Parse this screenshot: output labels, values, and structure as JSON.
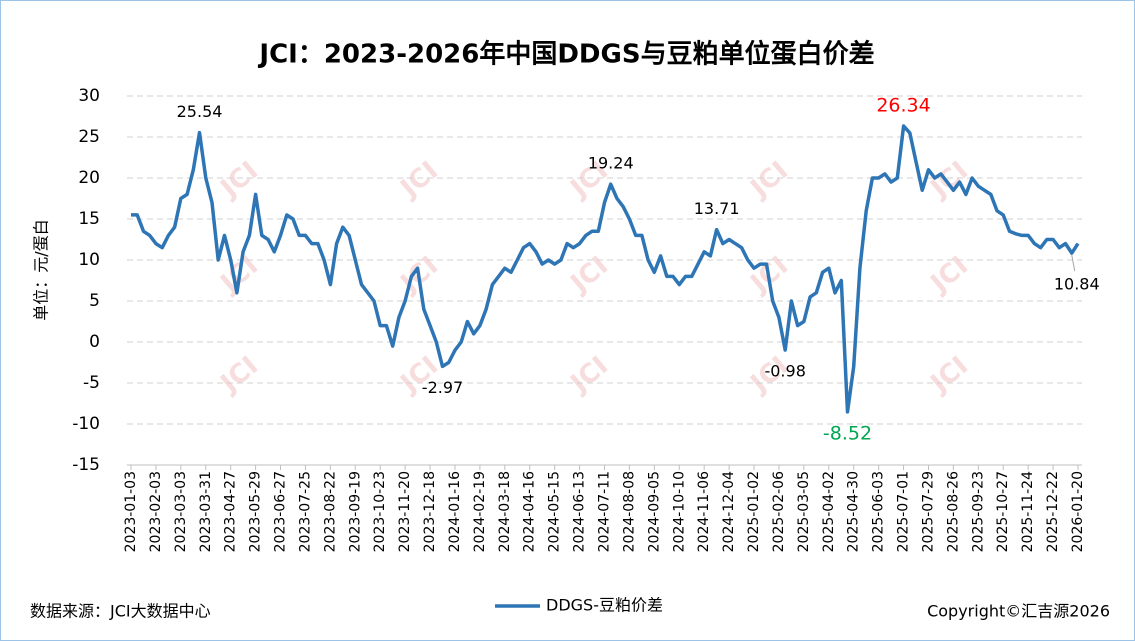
{
  "chart_data": {
    "type": "line",
    "title": "JCI：2023-2026年中国DDGS与豆粕单位蛋白价差",
    "y_label": "单位：元/蛋白",
    "source": "数据来源：JCI大数据中心",
    "copyright": "Copyright©汇吉源2026",
    "watermark": "JCI",
    "ylim": [
      -15,
      30
    ],
    "yticks": [
      -15,
      -10,
      -5,
      0,
      5,
      10,
      15,
      20,
      25,
      30
    ],
    "grid": true,
    "categories": [
      "2023-01-03",
      null,
      null,
      null,
      "2023-02-03",
      null,
      null,
      null,
      "2023-03-03",
      null,
      null,
      null,
      "2023-03-31",
      null,
      null,
      null,
      "2023-04-27",
      null,
      null,
      null,
      "2023-05-29",
      null,
      null,
      null,
      "2023-06-27",
      null,
      null,
      null,
      "2023-07-25",
      null,
      null,
      null,
      "2023-08-22",
      null,
      null,
      null,
      "2023-09-19",
      null,
      null,
      null,
      "2023-10-23",
      null,
      null,
      null,
      "2023-11-20",
      null,
      null,
      null,
      "2023-12-18",
      null,
      null,
      null,
      "2024-01-16",
      null,
      null,
      null,
      "2024-02-19",
      null,
      null,
      null,
      "2024-03-18",
      null,
      null,
      null,
      "2024-04-16",
      null,
      null,
      null,
      "2024-05-15",
      null,
      null,
      null,
      "2024-06-13",
      null,
      null,
      null,
      "2024-07-11",
      null,
      null,
      null,
      "2024-08-08",
      null,
      null,
      null,
      "2024-09-05",
      null,
      null,
      null,
      "2024-10-10",
      null,
      null,
      null,
      "2024-11-06",
      null,
      null,
      null,
      "2024-12-04",
      null,
      null,
      null,
      "2025-01-02",
      null,
      null,
      null,
      "2025-02-06",
      null,
      null,
      null,
      "2025-03-05",
      null,
      null,
      null,
      "2025-04-02",
      null,
      null,
      null,
      "2025-04-30",
      null,
      null,
      null,
      "2025-06-03",
      null,
      null,
      null,
      "2025-07-01",
      null,
      null,
      null,
      "2025-07-29",
      null,
      null,
      null,
      "2025-08-26",
      null,
      null,
      null,
      "2025-09-23",
      null,
      null,
      null,
      "2025-10-27",
      null,
      null,
      null,
      "2025-11-24",
      null,
      null,
      null,
      "2025-12-22",
      null,
      null,
      null,
      "2026-01-20"
    ],
    "series": [
      {
        "name": "DDGS-豆粕价差",
        "color": "#2e75b6",
        "values": [
          15.5,
          15.5,
          13.5,
          13,
          12,
          11.5,
          13,
          14,
          17.5,
          18,
          21,
          25.54,
          20,
          17,
          10,
          13,
          10,
          6,
          11,
          13,
          18,
          13,
          12.5,
          11,
          13,
          15.5,
          15,
          13,
          13,
          12,
          12,
          10,
          7,
          12,
          14,
          13,
          10,
          7,
          6,
          5,
          2,
          2,
          -0.5,
          3,
          5,
          8,
          9,
          4,
          2,
          0,
          -2.97,
          -2.5,
          -1,
          0,
          2.5,
          1,
          2,
          4,
          7,
          8,
          9,
          8.5,
          10,
          11.5,
          12,
          11,
          9.5,
          10,
          9.5,
          10,
          12,
          11.5,
          12,
          13,
          13.5,
          13.5,
          17,
          19.24,
          17.5,
          16.5,
          15,
          13,
          13,
          10,
          8.5,
          10.5,
          8,
          8,
          7,
          8,
          8,
          9.5,
          11,
          10.5,
          13.71,
          12,
          12.5,
          12,
          11.5,
          10,
          9,
          9.5,
          9.5,
          5,
          3,
          -0.98,
          5,
          2,
          2.5,
          5.5,
          6,
          8.5,
          9,
          6,
          7.5,
          -8.52,
          -3,
          9,
          16,
          20,
          20,
          20.5,
          19.5,
          20,
          26.34,
          25.5,
          22,
          18.5,
          21,
          20,
          20.5,
          19.5,
          18.5,
          19.5,
          18,
          20,
          19,
          18.5,
          18,
          16,
          15.5,
          13.5,
          13.2,
          13,
          13,
          12,
          11.5,
          12.5,
          12.5,
          11.5,
          12,
          10.84,
          12
        ]
      }
    ],
    "annotations": [
      {
        "at": 11,
        "color": "#000000",
        "side": "above"
      },
      {
        "at": 50,
        "color": "#000000",
        "side": "below"
      },
      {
        "at": 77,
        "color": "#000000",
        "side": "above"
      },
      {
        "at": 94,
        "color": "#000000",
        "side": "above"
      },
      {
        "at": 105,
        "color": "#000000",
        "side": "below"
      },
      {
        "at": 115,
        "color": "#00a650",
        "side": "below"
      },
      {
        "at": 124,
        "color": "#ff0000",
        "side": "above"
      },
      {
        "at": 151,
        "color": "#000000",
        "side": "below"
      }
    ]
  }
}
